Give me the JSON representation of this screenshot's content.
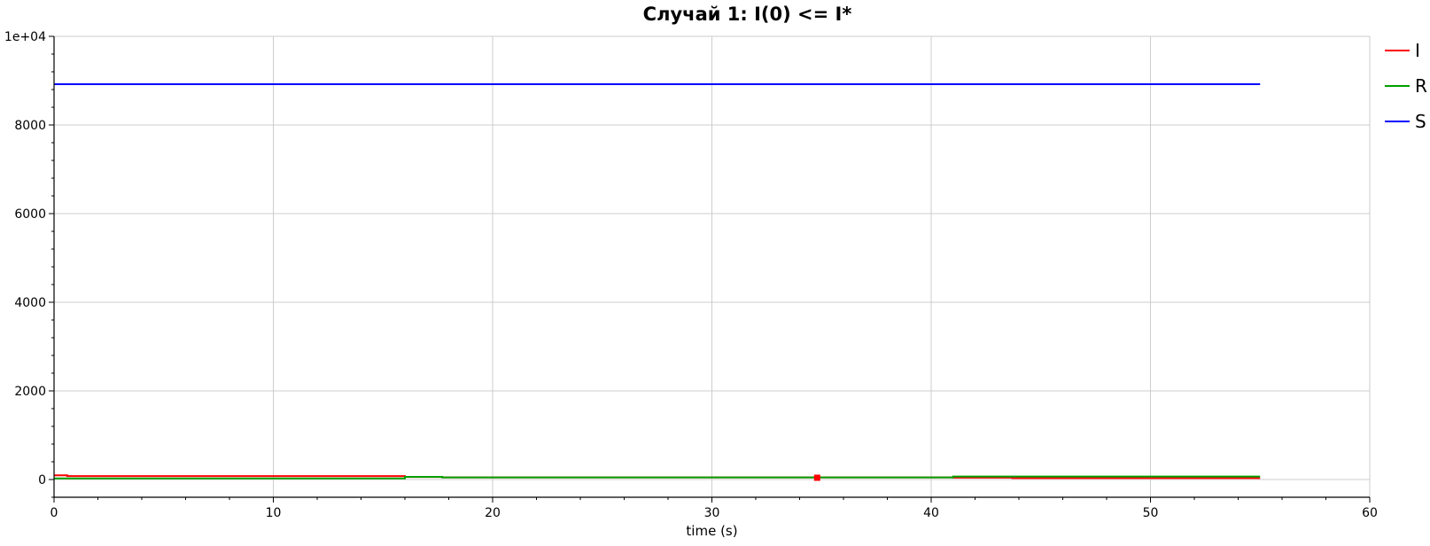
{
  "chart_data": {
    "type": "line",
    "title": "Случай 1: I(0) <= I*",
    "xlabel": "time (s)",
    "ylabel": "",
    "xlim": [
      0,
      60
    ],
    "ylim": [
      -400,
      10000
    ],
    "xticks": [
      0,
      10,
      20,
      30,
      40,
      50,
      60
    ],
    "xtick_labels": [
      "0",
      "10",
      "20",
      "30",
      "40",
      "50",
      "60"
    ],
    "yticks": [
      0,
      2000,
      4000,
      6000,
      8000,
      10000
    ],
    "ytick_labels": [
      "0",
      "2000",
      "4000",
      "6000",
      "8000",
      "1e+04"
    ],
    "grid": true,
    "legend_position": "right",
    "series": [
      {
        "name": "I",
        "color": "#ff0000",
        "x": [
          0,
          0.6,
          0.6,
          16,
          16,
          17.7,
          17.7,
          41,
          41,
          43.7,
          43.7,
          55
        ],
        "y": [
          95,
          95,
          78,
          78,
          58,
          58,
          48,
          48,
          42,
          42,
          32,
          32
        ]
      },
      {
        "name": "R",
        "color": "#00a000",
        "x": [
          0,
          16,
          16,
          17.7,
          17.7,
          41,
          41,
          55
        ],
        "y": [
          25,
          25,
          60,
          60,
          48,
          48,
          68,
          68
        ]
      },
      {
        "name": "S",
        "color": "#0000ff",
        "x": [
          0,
          55
        ],
        "y": [
          8920,
          8920
        ]
      }
    ],
    "marker": {
      "x": 34.8,
      "y": 40,
      "color": "#ff0000"
    }
  }
}
